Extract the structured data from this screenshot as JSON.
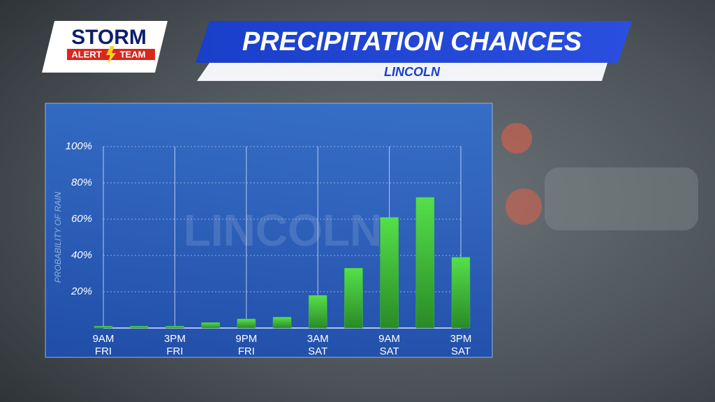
{
  "brand": {
    "line1": "STORM",
    "line2": "ALERT",
    "line3": "TEAM"
  },
  "chart_data": {
    "type": "bar",
    "title": "PRECIPITATION CHANCES",
    "subtitle": "LINCOLN",
    "watermark": "LINCOLN",
    "y_label": "PROBABILITY OF RAIN",
    "categories": [
      "9AM FRI",
      null,
      "3PM FRI",
      null,
      "9PM FRI",
      null,
      "3AM SAT",
      null,
      "9AM SAT",
      null,
      "3PM SAT"
    ],
    "values": [
      1,
      1,
      1,
      3,
      5,
      6,
      18,
      33,
      61,
      72,
      39
    ],
    "color": "#3fc63a",
    "ylim": [
      0,
      100
    ],
    "yticks": [
      {
        "value": 20,
        "label": "20%"
      },
      {
        "value": 40,
        "label": "40%"
      },
      {
        "value": 60,
        "label": "60%"
      },
      {
        "value": 80,
        "label": "80%"
      },
      {
        "value": 100,
        "label": "100%"
      }
    ],
    "grid": true
  }
}
